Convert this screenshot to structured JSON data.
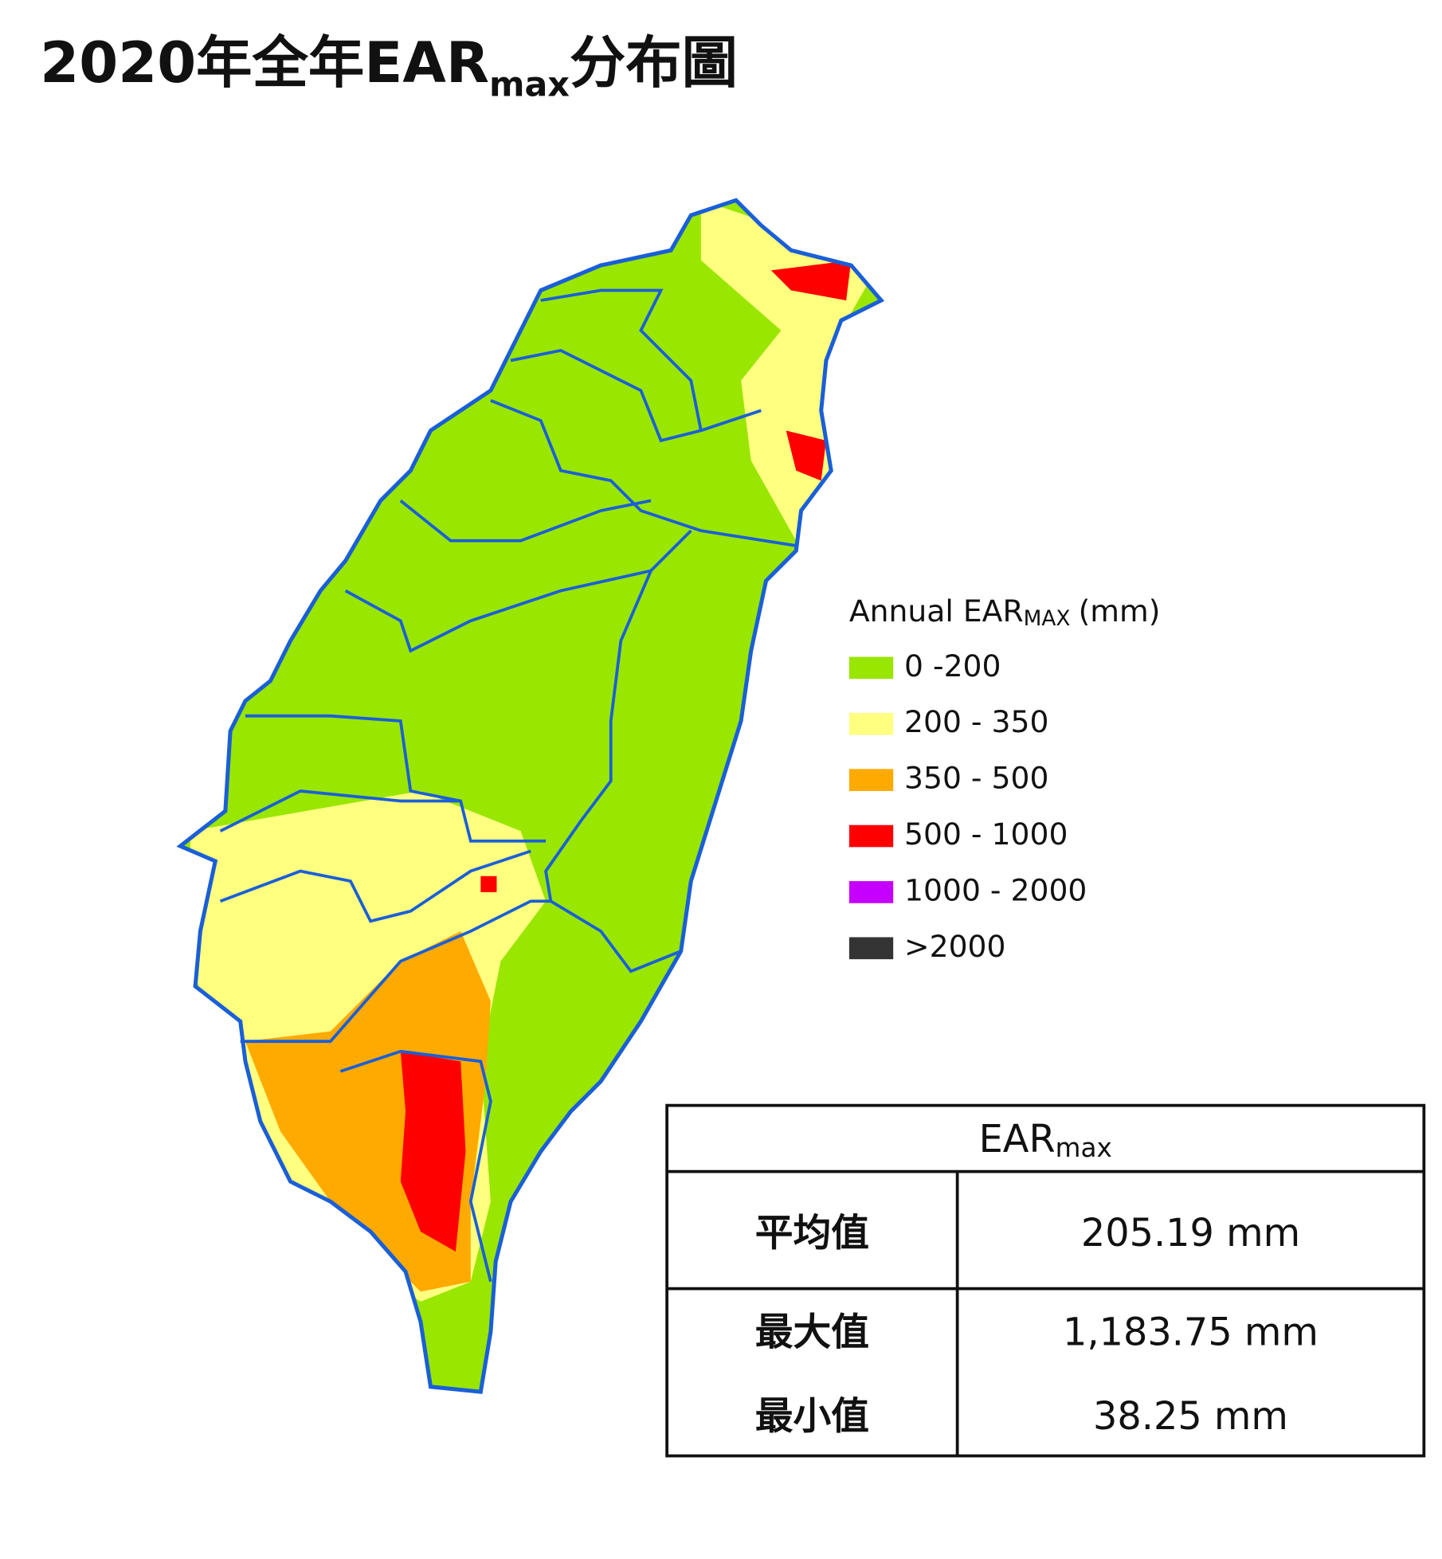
{
  "title": {
    "prefix": "2020年全年EAR",
    "sub": "max",
    "suffix": "分布圖"
  },
  "legend": {
    "title_prefix": "Annual EAR",
    "title_sub": "MAX",
    "title_suffix": "(mm)",
    "items": [
      {
        "label": "0 -200",
        "color": "#99e600"
      },
      {
        "label": "200 - 350",
        "color": "#ffff80"
      },
      {
        "label": "350 - 500",
        "color": "#ffaa00"
      },
      {
        "label": "500 - 1000",
        "color": "#ff0000"
      },
      {
        "label": "1000 - 2000",
        "color": "#c500ff"
      },
      {
        "label": ">2000",
        "color": "#343434"
      }
    ]
  },
  "table": {
    "header": {
      "main": "EAR",
      "sub": "max"
    },
    "rows": [
      [
        "平均值",
        "205.19 mm"
      ],
      [
        "最大值",
        "1,183.75 mm"
      ],
      [
        "最小值",
        "38.25 mm"
      ]
    ]
  }
}
